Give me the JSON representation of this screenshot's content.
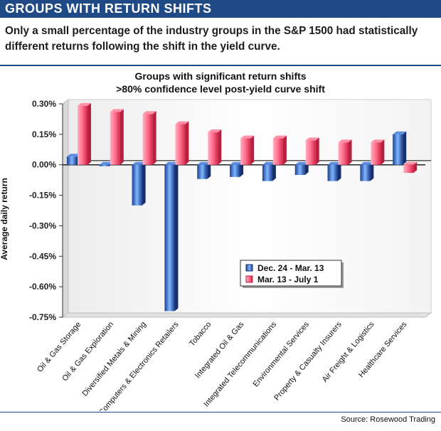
{
  "header": {
    "banner": "GROUPS WITH RETURN SHIFTS",
    "subtitle": "Only a small percentage of the industry groups in the S&P 1500 had statistically different returns following the shift in the yield curve.",
    "source": "Source: Rosewood Trading"
  },
  "colors": {
    "banner": "#1f4a86",
    "series_blue": "#2f5bb3",
    "series_red": "#e23b5c"
  },
  "chart_data": {
    "type": "bar",
    "title": "Groups with significant return shifts",
    "subtitle": ">80% confidence level post-yield curve shift",
    "xlabel": "",
    "ylabel": "Average daily return",
    "ylim": [
      -0.75,
      0.3
    ],
    "yticks": [
      0.3,
      0.15,
      0.0,
      -0.15,
      -0.3,
      -0.45,
      -0.6,
      -0.75
    ],
    "ytick_labels": [
      "0.30%",
      "0.15%",
      "0.00%",
      "-0.15%",
      "-0.30%",
      "-0.45%",
      "-0.60%",
      "-0.75%"
    ],
    "categories": [
      "Oil & Gas Storage",
      "Oil & Gas Exploration",
      "Diversified Metals & Mining",
      "Computers & Electronics Retailers",
      "Tobacco",
      "Integrated Oil & Gas",
      "Integrated Telecommunications",
      "Environmental Services",
      "Property & Casualty Insurers",
      "Air Freight & Logistics",
      "Healthcare Services"
    ],
    "series": [
      {
        "name": "Dec. 24 - Mar. 13",
        "color": "blue",
        "values": [
          0.04,
          0.0,
          -0.2,
          -0.72,
          -0.07,
          -0.06,
          -0.08,
          -0.05,
          -0.08,
          -0.08,
          0.15
        ]
      },
      {
        "name": "Mar. 13 - July 1",
        "color": "red",
        "values": [
          0.29,
          0.26,
          0.25,
          0.2,
          0.16,
          0.13,
          0.13,
          0.12,
          0.11,
          0.11,
          -0.04
        ]
      }
    ],
    "legend_position": "lower-right"
  }
}
